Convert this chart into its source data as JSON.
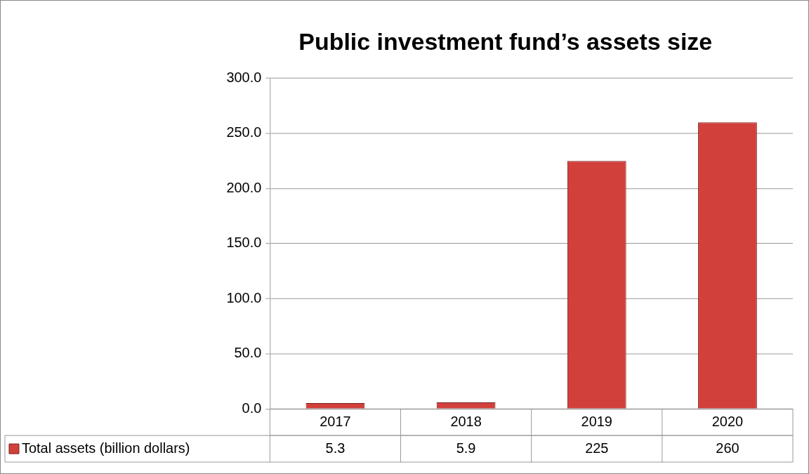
{
  "chart_data": {
    "type": "bar",
    "title": "Public investment fund’s assets size",
    "categories": [
      "2017",
      "2018",
      "2019",
      "2020"
    ],
    "series": [
      {
        "name": "Total assets (billion dollars)",
        "color": "#d2403b",
        "values": [
          5.3,
          5.9,
          225,
          260
        ]
      }
    ],
    "ylim": [
      0,
      300
    ],
    "yticks": [
      {
        "value": 0,
        "label": "0.0"
      },
      {
        "value": 50,
        "label": "50.0"
      },
      {
        "value": 100,
        "label": "100.0"
      },
      {
        "value": 150,
        "label": "150.0"
      },
      {
        "value": 200,
        "label": "200.0"
      },
      {
        "value": 250,
        "label": "250.0"
      },
      {
        "value": 300,
        "label": "300.0"
      }
    ],
    "grid": "y",
    "legend": "bottom left",
    "data_labels": true
  }
}
